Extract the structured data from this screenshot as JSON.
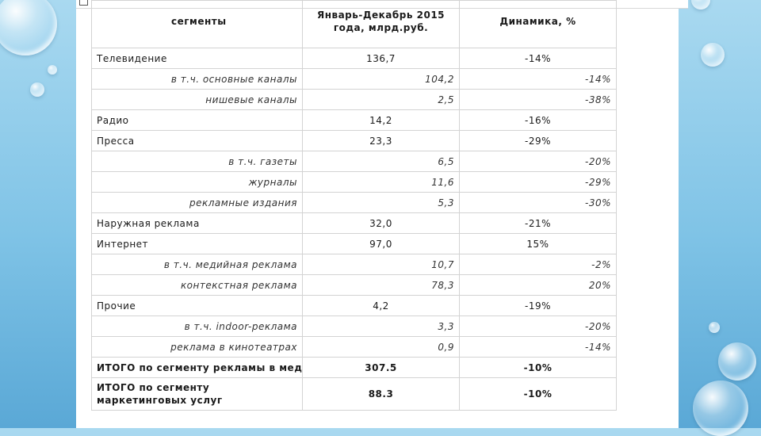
{
  "header": {
    "segment_label": "сегменты",
    "period_label": "Январь-Декабрь 2015 года, млрд.руб.",
    "dynamics_label": "Динамика, %"
  },
  "rows": [
    {
      "segment": "Телевидение",
      "value": "136,7",
      "dynamics": "-14%",
      "type": "main"
    },
    {
      "segment": "в т.ч. основные каналы",
      "value": "104,2",
      "dynamics": "-14%",
      "type": "sub"
    },
    {
      "segment": "нишевые каналы",
      "value": "2,5",
      "dynamics": "-38%",
      "type": "sub"
    },
    {
      "segment": "Радио",
      "value": "14,2",
      "dynamics": "-16%",
      "type": "main"
    },
    {
      "segment": "Пресса",
      "value": "23,3",
      "dynamics": "-29%",
      "type": "main"
    },
    {
      "segment": "в т.ч. газеты",
      "value": "6,5",
      "dynamics": "-20%",
      "type": "sub"
    },
    {
      "segment": "журналы",
      "value": "11,6",
      "dynamics": "-29%",
      "type": "sub"
    },
    {
      "segment": "рекламные издания",
      "value": "5,3",
      "dynamics": "-30%",
      "type": "sub"
    },
    {
      "segment": "Наружная реклама",
      "value": "32,0",
      "dynamics": "-21%",
      "type": "main"
    },
    {
      "segment": "Интернет",
      "value": "97,0",
      "dynamics": "15%",
      "type": "main"
    },
    {
      "segment": "в т.ч. медийная реклама",
      "value": "10,7",
      "dynamics": "-2%",
      "type": "sub"
    },
    {
      "segment": "контекстная реклама",
      "value": "78,3",
      "dynamics": "20%",
      "type": "sub"
    },
    {
      "segment": "Прочие",
      "value": "4,2",
      "dynamics": "-19%",
      "type": "main"
    },
    {
      "segment": "в т.ч. indoor-реклама",
      "value": "3,3",
      "dynamics": "-20%",
      "type": "sub"
    },
    {
      "segment": "реклама в кинотеатрах",
      "value": "0,9",
      "dynamics": "-14%",
      "type": "sub"
    },
    {
      "segment": "ИТОГО по сегменту рекламы в медиа",
      "value": "307.5",
      "dynamics": "-10%",
      "type": "total"
    },
    {
      "segment": "ИТОГО по сегменту маркетинговых услуг",
      "value": "88.3",
      "dynamics": "-10%",
      "type": "total-tall"
    }
  ]
}
